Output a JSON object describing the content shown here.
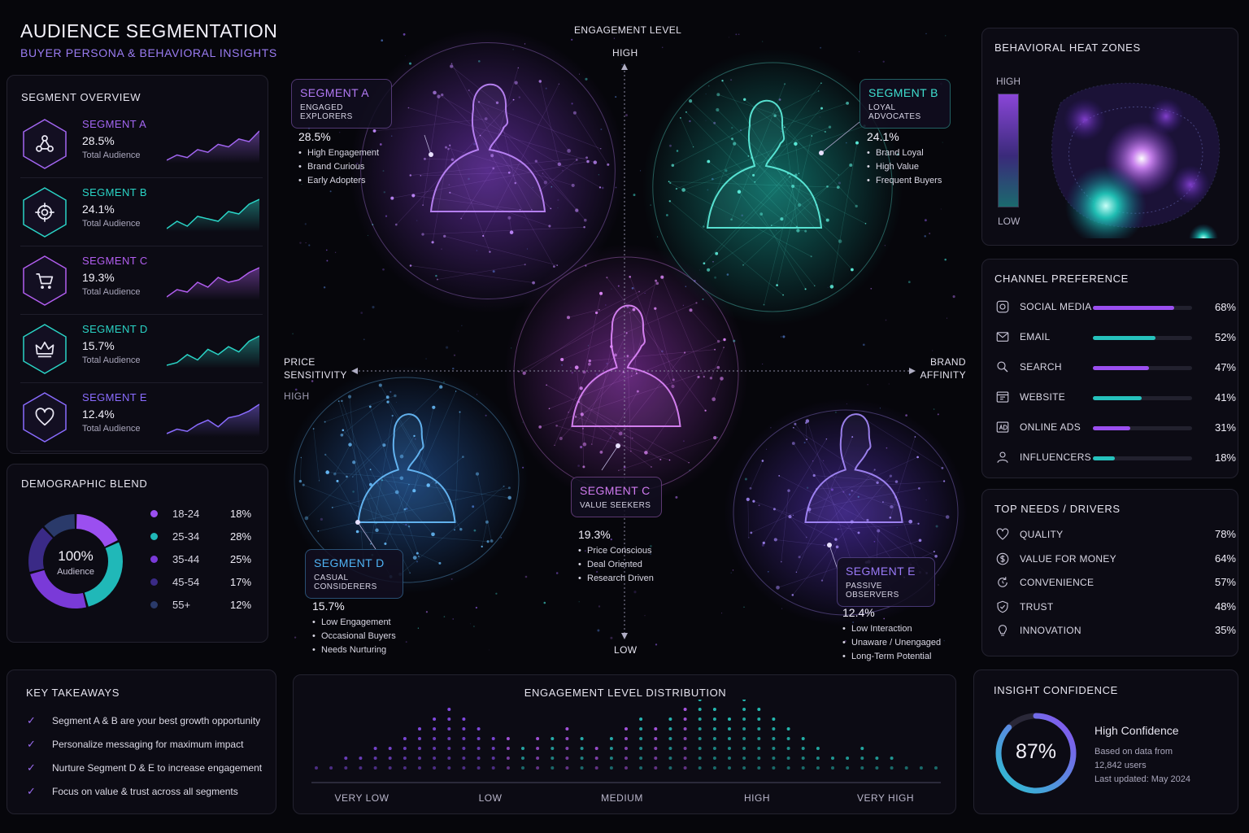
{
  "header": {
    "title": "AUDIENCE SEGMENTATION",
    "subtitle": "BUYER PERSONA & BEHAVIORAL INSIGHTS"
  },
  "segment_overview": {
    "title": "SEGMENT OVERVIEW",
    "items": [
      {
        "name": "SEGMENT A",
        "pct": "28.5%",
        "sub": "Total Audience",
        "color": "#a366f2",
        "icon": "network-icon",
        "trend": [
          3,
          5,
          4,
          7,
          6,
          9,
          8,
          11,
          10,
          14
        ]
      },
      {
        "name": "SEGMENT B",
        "pct": "24.1%",
        "sub": "Total Audience",
        "color": "#2ad4c6",
        "icon": "target-icon",
        "trend": [
          3,
          6,
          4,
          8,
          7,
          6,
          10,
          9,
          13,
          15
        ]
      },
      {
        "name": "SEGMENT C",
        "pct": "19.3%",
        "sub": "Total Audience",
        "color": "#b25ef0",
        "icon": "cart-icon",
        "trend": [
          2,
          5,
          4,
          8,
          6,
          10,
          8,
          9,
          12,
          14
        ]
      },
      {
        "name": "SEGMENT D",
        "pct": "15.7%",
        "sub": "Total Audience",
        "color": "#2ad4c6",
        "icon": "crown-icon",
        "trend": [
          3,
          4,
          7,
          5,
          9,
          7,
          10,
          8,
          12,
          14
        ]
      },
      {
        "name": "SEGMENT E",
        "pct": "12.4%",
        "sub": "Total Audience",
        "color": "#8a6cff",
        "icon": "heart-icon",
        "trend": [
          2,
          4,
          3,
          6,
          8,
          5,
          9,
          10,
          12,
          15
        ]
      }
    ]
  },
  "demographic": {
    "title": "DEMOGRAPHIC BLEND",
    "center_value": "100%",
    "center_label": "Audience",
    "rows": [
      {
        "label": "18-24",
        "value": "18%",
        "share": 18,
        "color": "#9b4ff0"
      },
      {
        "label": "25-34",
        "value": "28%",
        "share": 28,
        "color": "#20b8b8"
      },
      {
        "label": "35-44",
        "value": "25%",
        "share": 25,
        "color": "#7a3ad8"
      },
      {
        "label": "45-54",
        "value": "17%",
        "share": 17,
        "color": "#3a2a86"
      },
      {
        "label": "55+",
        "value": "12%",
        "share": 12,
        "color": "#2a3a6a"
      }
    ]
  },
  "takeaways": {
    "title": "KEY TAKEAWAYS",
    "items": [
      "Segment A & B are your best growth opportunity",
      "Personalize messaging for maximum impact",
      "Nurture Segment D & E to increase engagement",
      "Focus on value & trust across all segments"
    ]
  },
  "map": {
    "y_axis_title": "ENGAGEMENT LEVEL",
    "y_high": "HIGH",
    "y_low": "LOW",
    "x_left_1": "PRICE",
    "x_left_2": "SENSITIVITY",
    "x_left_high": "HIGH",
    "x_right_1": "BRAND",
    "x_right_2": "AFFINITY",
    "segments": [
      {
        "name": "SEGMENT A",
        "sub": "ENGAGED EXPLORERS",
        "pct": "28.5%",
        "traits": [
          "High Engagement",
          "Brand Curious",
          "Early Adopters"
        ],
        "color": "#b37af5"
      },
      {
        "name": "SEGMENT B",
        "sub": "LOYAL ADVOCATES",
        "pct": "24.1%",
        "traits": [
          "Brand Loyal",
          "High Value",
          "Frequent Buyers"
        ],
        "color": "#3fe0d0"
      },
      {
        "name": "SEGMENT C",
        "sub": "VALUE SEEKERS",
        "pct": "19.3%",
        "traits": [
          "Price Conscious",
          "Deal Oriented",
          "Research Driven"
        ],
        "color": "#d07af0"
      },
      {
        "name": "SEGMENT D",
        "sub": "CASUAL CONSIDERERS",
        "pct": "15.7%",
        "traits": [
          "Low Engagement",
          "Occasional Buyers",
          "Needs Nurturing"
        ],
        "color": "#4fb3f5"
      },
      {
        "name": "SEGMENT E",
        "sub": "PASSIVE OBSERVERS",
        "pct": "12.4%",
        "traits": [
          "Low Interaction",
          "Unaware / Unengaged",
          "Long-Term Potential"
        ],
        "color": "#9a7af8"
      }
    ]
  },
  "distribution": {
    "title": "ENGAGEMENT LEVEL DISTRIBUTION",
    "labels": [
      "VERY LOW",
      "LOW",
      "MEDIUM",
      "HIGH",
      "VERY HIGH"
    ]
  },
  "heat": {
    "title": "BEHAVIORAL HEAT ZONES",
    "high": "HIGH",
    "low": "LOW"
  },
  "channels": {
    "title": "CHANNEL PREFERENCE",
    "items": [
      {
        "label": "SOCIAL MEDIA",
        "value": "68%",
        "level": 0.68,
        "color": "#9b4ff0",
        "icon": "social-icon"
      },
      {
        "label": "EMAIL",
        "value": "52%",
        "level": 0.52,
        "color": "#26c2bd",
        "icon": "mail-icon"
      },
      {
        "label": "SEARCH",
        "value": "47%",
        "level": 0.47,
        "color": "#9b4ff0",
        "icon": "search-icon"
      },
      {
        "label": "WEBSITE",
        "value": "41%",
        "level": 0.41,
        "color": "#26c2bd",
        "icon": "browser-icon"
      },
      {
        "label": "ONLINE ADS",
        "value": "31%",
        "level": 0.31,
        "color": "#9b4ff0",
        "icon": "ads-icon"
      },
      {
        "label": "INFLUENCERS",
        "value": "18%",
        "level": 0.18,
        "color": "#26c2bd",
        "icon": "person-icon"
      }
    ]
  },
  "needs": {
    "title": "TOP NEEDS / DRIVERS",
    "items": [
      {
        "label": "QUALITY",
        "value": "78%",
        "icon": "heart-icon"
      },
      {
        "label": "VALUE FOR MONEY",
        "value": "64%",
        "icon": "dollar-icon"
      },
      {
        "label": "CONVENIENCE",
        "value": "57%",
        "icon": "refresh-icon"
      },
      {
        "label": "TRUST",
        "value": "48%",
        "icon": "shield-icon"
      },
      {
        "label": "INNOVATION",
        "value": "35%",
        "icon": "bulb-icon"
      }
    ]
  },
  "confidence": {
    "title": "INSIGHT CONFIDENCE",
    "value": "87%",
    "level": 0.87,
    "label": "High Confidence",
    "line1": "Based on data from",
    "line2": "12,842 users",
    "line3": "Last updated: May 2024"
  }
}
